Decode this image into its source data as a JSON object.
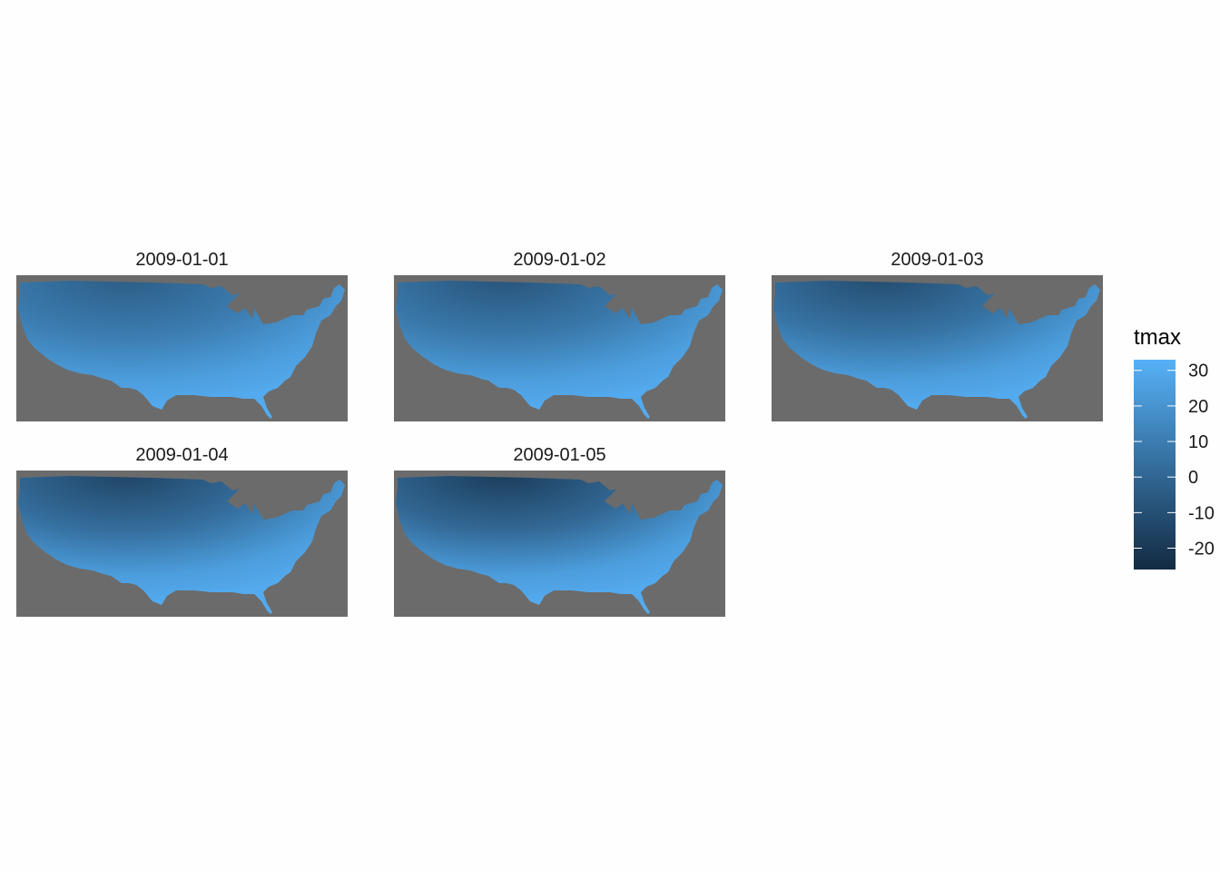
{
  "chart_data": {
    "type": "heatmap",
    "variable": "tmax",
    "panels": [
      {
        "label": "2009-01-01"
      },
      {
        "label": "2009-01-02"
      },
      {
        "label": "2009-01-03"
      },
      {
        "label": "2009-01-04"
      },
      {
        "label": "2009-01-05"
      }
    ],
    "legend": {
      "title": "tmax",
      "ticks": [
        30,
        20,
        10,
        0,
        -10,
        -20
      ],
      "tick_labels": [
        "30",
        "20",
        "10",
        "0",
        "-10",
        "-20"
      ],
      "range": [
        -26,
        33
      ],
      "color_low": "#132b43",
      "color_high": "#56b1f7"
    },
    "panel_background": "#6b6b6b"
  }
}
